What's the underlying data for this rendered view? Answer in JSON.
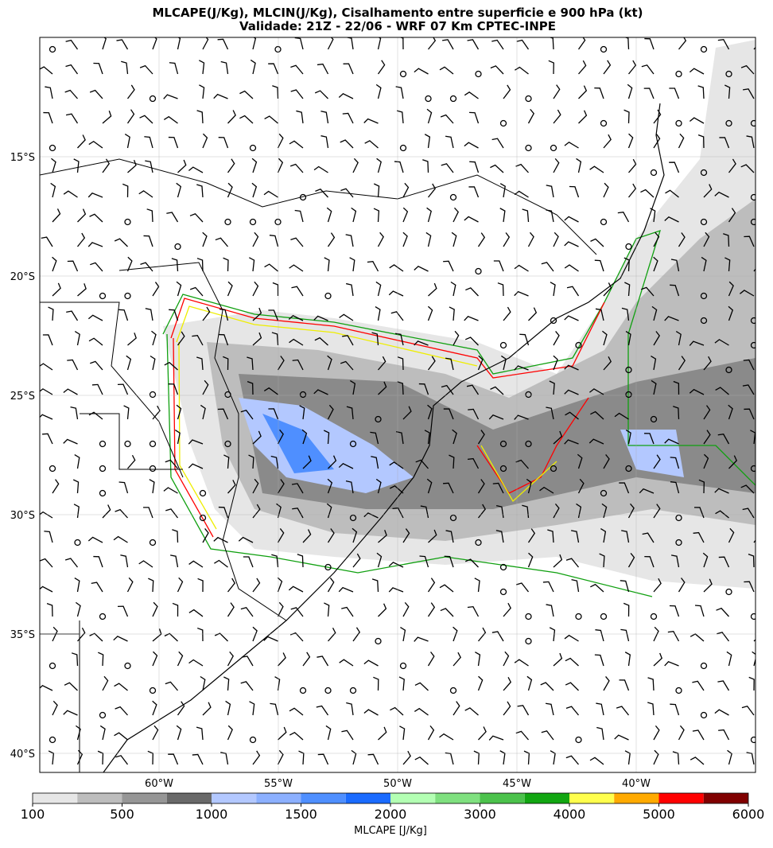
{
  "chart_data": {
    "type": "map",
    "title": "MLCAPE(J/Kg), MLCIN(J/Kg), Cisalhamento entre superficie e 900 hPa (kt)",
    "subtitle": "Validade: 21Z - 22/06 - WRF 07 Km CPTEC-INPE",
    "xlim": [
      -65,
      -35
    ],
    "ylim": [
      -40.8,
      -10
    ],
    "xticks": [
      {
        "value": -60,
        "label": "60°W"
      },
      {
        "value": -55,
        "label": "55°W"
      },
      {
        "value": -50,
        "label": "50°W"
      },
      {
        "value": -45,
        "label": "45°W"
      },
      {
        "value": -40,
        "label": "40°W"
      }
    ],
    "yticks": [
      {
        "value": -15,
        "label": "15°S"
      },
      {
        "value": -20,
        "label": "20°S"
      },
      {
        "value": -25,
        "label": "25°S"
      },
      {
        "value": -30,
        "label": "30°S"
      },
      {
        "value": -35,
        "label": "35°S"
      },
      {
        "value": -40,
        "label": "40°S"
      }
    ],
    "grid": true,
    "colorbar": {
      "label": "MLCAPE [J/Kg]",
      "levels": [
        100,
        250,
        500,
        750,
        1000,
        1250,
        1500,
        1750,
        2000,
        2500,
        3000,
        3500,
        4000,
        4500,
        5000,
        5500,
        6000
      ],
      "colors": [
        "#e6e6e6",
        "#bdbdbd",
        "#969696",
        "#696969",
        "#b3c8ff",
        "#8cb0ff",
        "#4f8fff",
        "#1a6bff",
        "#b3ffb3",
        "#7fe07f",
        "#4cc24c",
        "#12a612",
        "#ffff4d",
        "#ffaa00",
        "#ff0000",
        "#800000"
      ],
      "ticks": [
        100,
        500,
        1000,
        1500,
        2000,
        3000,
        4000,
        5000,
        6000
      ]
    }
  }
}
